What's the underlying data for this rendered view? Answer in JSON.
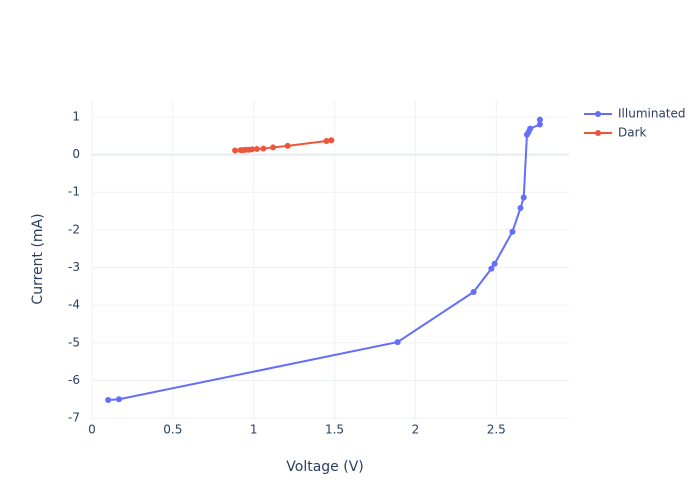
{
  "chart_data": {
    "type": "line",
    "x_label": "Voltage (V)",
    "y_label": "Current (mA)",
    "xlim": [
      0,
      2.95
    ],
    "ylim": [
      -7.05,
      1.45
    ],
    "xticks": [
      0,
      0.5,
      1,
      1.5,
      2,
      2.5
    ],
    "yticks": [
      -7,
      -6,
      -5,
      -4,
      -3,
      -2,
      -1,
      0,
      1
    ],
    "grid": true,
    "legend": "right",
    "series": [
      {
        "name": "Illuminated",
        "color": "#636efa",
        "x": [
          0.1,
          0.167,
          1.89,
          2.36,
          2.47,
          2.49,
          2.6,
          2.65,
          2.67,
          2.69,
          2.7,
          2.71,
          2.77,
          2.77
        ],
        "values": [
          -6.52,
          -6.5,
          -4.98,
          -3.65,
          -3.03,
          -2.9,
          -2.05,
          -1.42,
          -1.14,
          0.53,
          0.6,
          0.69,
          0.8,
          0.93
        ]
      },
      {
        "name": "Dark",
        "color": "#ef553b",
        "x": [
          0.885,
          0.92,
          0.935,
          0.95,
          0.97,
          0.99,
          1.02,
          1.06,
          1.12,
          1.21,
          1.45,
          1.48
        ],
        "values": [
          0.11,
          0.12,
          0.12,
          0.13,
          0.13,
          0.14,
          0.15,
          0.16,
          0.19,
          0.23,
          0.36,
          0.38
        ]
      }
    ]
  }
}
